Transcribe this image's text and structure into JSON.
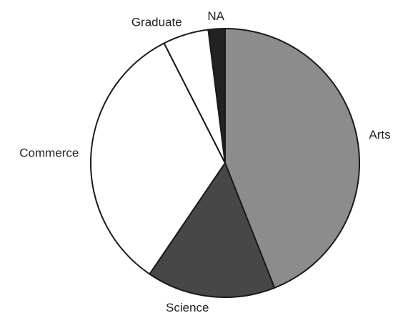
{
  "chart_data": {
    "type": "pie",
    "categories": [
      "Arts",
      "Science",
      "Commerce",
      "Graduate",
      "NA"
    ],
    "values": [
      44,
      15.5,
      33,
      5.5,
      2
    ],
    "colors": [
      "#8c8c8c",
      "#474747",
      "#ffffff",
      "#ffffff",
      "#222222"
    ]
  }
}
